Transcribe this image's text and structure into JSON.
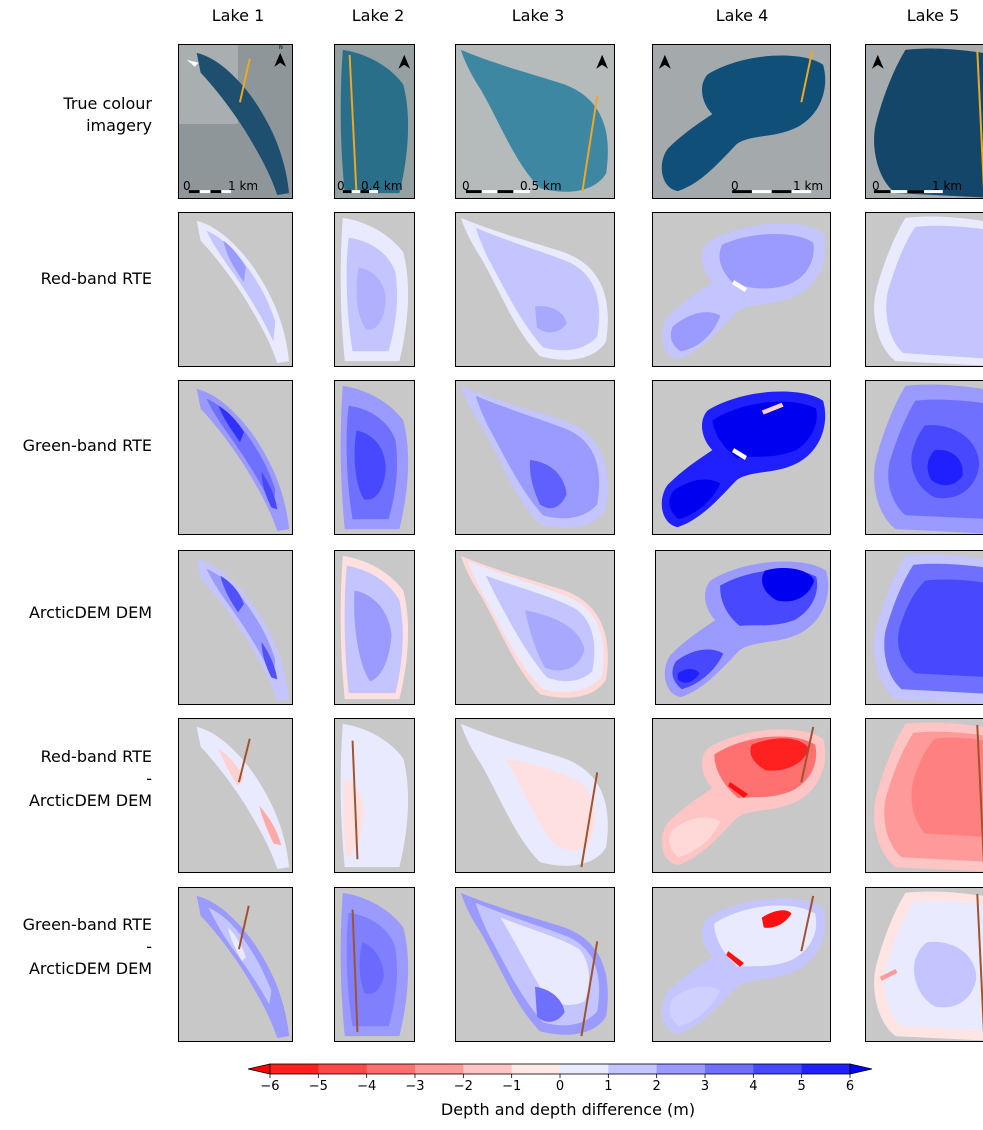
{
  "columns": [
    "Lake 1",
    "Lake 2",
    "Lake 3",
    "Lake 4",
    "Lake 5"
  ],
  "rows": [
    {
      "label_lines": [
        "True colour",
        "imagery"
      ]
    },
    {
      "label_lines": [
        "Red-band RTE"
      ]
    },
    {
      "label_lines": [
        "Green-band RTE"
      ]
    },
    {
      "label_lines": [
        "ArcticDEM DEM"
      ]
    },
    {
      "label_lines": [
        "Red-band RTE",
        "-",
        "ArcticDEM DEM"
      ]
    },
    {
      "label_lines": [
        "Green-band RTE",
        "-",
        "ArcticDEM DEM"
      ]
    }
  ],
  "scale_bars": [
    {
      "start": "0",
      "end": "1 km"
    },
    {
      "start": "0",
      "end": "0.4 km"
    },
    {
      "start": "0",
      "end": "0.5 km"
    },
    {
      "start": "0",
      "end": "1 km"
    },
    {
      "start": "0",
      "end": "1 km"
    }
  ],
  "north_label": "N",
  "colorbar": {
    "title": "Depth and depth difference (m)",
    "ticks": [
      "−6",
      "−5",
      "−4",
      "−3",
      "−2",
      "−1",
      "0",
      "1",
      "2",
      "3",
      "4",
      "5",
      "6"
    ],
    "colors": [
      "#ff2020",
      "#ff4848",
      "#ff7070",
      "#ff9a9a",
      "#ffc4c4",
      "#ffe8e8",
      "#eaeaff",
      "#c4c4ff",
      "#9a9aff",
      "#7070ff",
      "#4848ff",
      "#2020ff"
    ],
    "extend_low": "#ff0000",
    "extend_high": "#0000ff"
  },
  "colors": {
    "background": "#c8c8c8",
    "profile_line_imagery": "#f0a820",
    "profile_line_diff": "#a0522d"
  }
}
